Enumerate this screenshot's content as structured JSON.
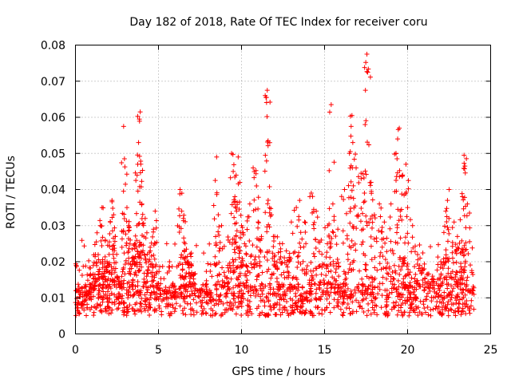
{
  "chart_data": {
    "type": "scatter",
    "title": "Day 182 of 2018, Rate Of TEC Index for receiver coru",
    "xlabel": "GPS time / hours",
    "ylabel": "ROTI / TECUs",
    "xlim": [
      0,
      25
    ],
    "ylim": [
      0,
      0.08
    ],
    "xticks": [
      0,
      5,
      10,
      15,
      20,
      25
    ],
    "xtick_labels": [
      "0",
      "5",
      "10",
      "15",
      "20",
      "25"
    ],
    "yticks": [
      0,
      0.01,
      0.02,
      0.03,
      0.04,
      0.05,
      0.06,
      0.07,
      0.08
    ],
    "ytick_labels": [
      "0",
      "0.01",
      "0.02",
      "0.03",
      "0.04",
      "0.05",
      "0.06",
      "0.07",
      "0.08"
    ],
    "grid": true,
    "marker": "+",
    "color": "#ff0000",
    "background_range": [
      0,
      24
    ],
    "points": [
      [
        0.2,
        0.012
      ],
      [
        0.5,
        0.008
      ],
      [
        0.8,
        0.011
      ],
      [
        1.0,
        0.014
      ],
      [
        1.2,
        0.022
      ],
      [
        1.3,
        0.028
      ],
      [
        1.5,
        0.03
      ],
      [
        1.6,
        0.035
      ],
      [
        1.8,
        0.026
      ],
      [
        1.9,
        0.02
      ],
      [
        2.1,
        0.031
      ],
      [
        2.2,
        0.037
      ],
      [
        2.3,
        0.033
      ],
      [
        2.4,
        0.027
      ],
      [
        2.5,
        0.016
      ],
      [
        2.9,
        0.0575
      ],
      [
        2.95,
        0.0485
      ],
      [
        3.1,
        0.035
      ],
      [
        3.2,
        0.03
      ],
      [
        3.3,
        0.026
      ],
      [
        3.4,
        0.021
      ],
      [
        3.6,
        0.025
      ],
      [
        3.7,
        0.03
      ],
      [
        3.75,
        0.047
      ],
      [
        3.8,
        0.053
      ],
      [
        3.85,
        0.0595
      ],
      [
        3.9,
        0.0615
      ],
      [
        4.0,
        0.036
      ],
      [
        4.2,
        0.032
      ],
      [
        4.3,
        0.028
      ],
      [
        4.5,
        0.024
      ],
      [
        4.7,
        0.029
      ],
      [
        4.8,
        0.034
      ],
      [
        5.0,
        0.014
      ],
      [
        5.5,
        0.011
      ],
      [
        6.0,
        0.01
      ],
      [
        6.3,
        0.04
      ],
      [
        6.4,
        0.034
      ],
      [
        6.5,
        0.032
      ],
      [
        6.6,
        0.025
      ],
      [
        6.8,
        0.02
      ],
      [
        7.0,
        0.017
      ],
      [
        7.5,
        0.012
      ],
      [
        8.0,
        0.011
      ],
      [
        8.5,
        0.049
      ],
      [
        8.6,
        0.033
      ],
      [
        8.8,
        0.03
      ],
      [
        9.0,
        0.016
      ],
      [
        9.2,
        0.026
      ],
      [
        9.4,
        0.05
      ],
      [
        9.5,
        0.045
      ],
      [
        9.6,
        0.038
      ],
      [
        9.7,
        0.034
      ],
      [
        9.8,
        0.049
      ],
      [
        9.9,
        0.042
      ],
      [
        10.0,
        0.03
      ],
      [
        10.1,
        0.028
      ],
      [
        10.3,
        0.022
      ],
      [
        10.5,
        0.036
      ],
      [
        10.7,
        0.046
      ],
      [
        10.9,
        0.041
      ],
      [
        11.0,
        0.031
      ],
      [
        11.2,
        0.027
      ],
      [
        11.5,
        0.0655
      ],
      [
        11.55,
        0.0675
      ],
      [
        11.6,
        0.0535
      ],
      [
        11.8,
        0.033
      ],
      [
        12.0,
        0.027
      ],
      [
        12.3,
        0.025
      ],
      [
        12.7,
        0.023
      ],
      [
        13.0,
        0.031
      ],
      [
        13.3,
        0.035
      ],
      [
        13.5,
        0.037
      ],
      [
        13.8,
        0.031
      ],
      [
        14.2,
        0.039
      ],
      [
        14.5,
        0.034
      ],
      [
        14.8,
        0.026
      ],
      [
        15.2,
        0.03
      ],
      [
        15.4,
        0.0635
      ],
      [
        15.5,
        0.036
      ],
      [
        15.8,
        0.029
      ],
      [
        16.2,
        0.04
      ],
      [
        16.5,
        0.05
      ],
      [
        16.6,
        0.0575
      ],
      [
        16.65,
        0.0605
      ],
      [
        16.7,
        0.053
      ],
      [
        16.9,
        0.046
      ],
      [
        17.2,
        0.0445
      ],
      [
        17.4,
        0.039
      ],
      [
        17.55,
        0.0775
      ],
      [
        17.6,
        0.0725
      ],
      [
        17.8,
        0.042
      ],
      [
        18.0,
        0.033
      ],
      [
        18.3,
        0.036
      ],
      [
        18.6,
        0.031
      ],
      [
        19.0,
        0.036
      ],
      [
        19.3,
        0.05
      ],
      [
        19.4,
        0.054
      ],
      [
        19.5,
        0.057
      ],
      [
        19.7,
        0.044
      ],
      [
        19.9,
        0.047
      ],
      [
        20.0,
        0.035
      ],
      [
        20.3,
        0.03
      ],
      [
        20.6,
        0.022
      ],
      [
        21.0,
        0.018
      ],
      [
        21.5,
        0.016
      ],
      [
        22.0,
        0.02
      ],
      [
        22.3,
        0.034
      ],
      [
        22.4,
        0.037
      ],
      [
        22.5,
        0.04
      ],
      [
        22.8,
        0.031
      ],
      [
        23.0,
        0.027
      ],
      [
        23.3,
        0.038
      ],
      [
        23.4,
        0.0495
      ],
      [
        23.45,
        0.0465
      ],
      [
        23.6,
        0.036
      ],
      [
        23.8,
        0.012
      ]
    ]
  }
}
